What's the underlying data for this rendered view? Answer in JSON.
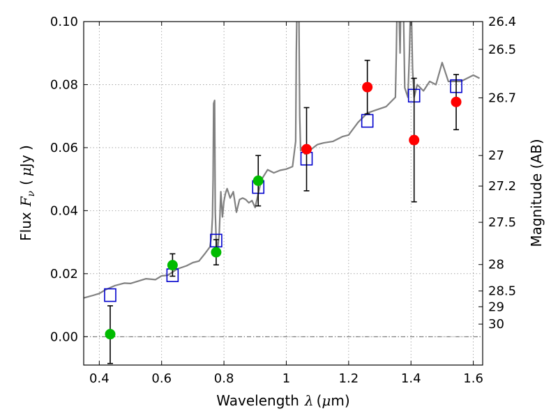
{
  "chart_data": {
    "type": "scatter",
    "title": "",
    "xlabel": {
      "prefix": "Wavelength",
      "symbol": "λ",
      "unit_open": "(",
      "unit_mu": "μ",
      "unit_rest": "m)"
    },
    "ylabel": {
      "prefix": "Flux",
      "symbol": "F",
      "subscript": "ν",
      "unit_open": "(",
      "unit_mu": "μ",
      "unit_rest": "Jy )"
    },
    "ylabel_right": "Magnitude (AB)",
    "xlim": [
      0.35,
      1.63
    ],
    "ylim": [
      -0.009,
      0.1
    ],
    "xticks": [
      {
        "v": 0.4,
        "label": "0.4"
      },
      {
        "v": 0.6,
        "label": "0.6"
      },
      {
        "v": 0.8,
        "label": "0.8"
      },
      {
        "v": 1.0,
        "label": "1"
      },
      {
        "v": 1.2,
        "label": "1.2"
      },
      {
        "v": 1.4,
        "label": "1.4"
      },
      {
        "v": 1.6,
        "label": "1.6"
      }
    ],
    "yticks": [
      {
        "v": 0.0,
        "label": "0.00"
      },
      {
        "v": 0.02,
        "label": "0.02"
      },
      {
        "v": 0.04,
        "label": "0.04"
      },
      {
        "v": 0.06,
        "label": "0.06"
      },
      {
        "v": 0.08,
        "label": "0.08"
      },
      {
        "v": 0.1,
        "label": "0.10"
      }
    ],
    "right_ticks": [
      {
        "label": "26.4",
        "flux": 0.1
      },
      {
        "label": "26.5",
        "flux": 0.0912
      },
      {
        "label": "26.7",
        "flux": 0.0758
      },
      {
        "label": "27",
        "flux": 0.0575
      },
      {
        "label": "27.2",
        "flux": 0.0478
      },
      {
        "label": "27.5",
        "flux": 0.0363
      },
      {
        "label": "28",
        "flux": 0.0229
      },
      {
        "label": "28.5",
        "flux": 0.0145
      },
      {
        "label": "29",
        "flux": 0.0095
      },
      {
        "label": "30",
        "flux": 0.004
      }
    ],
    "grid": true,
    "zero_line": true,
    "colors": {
      "spectrum": "#808080",
      "model": "#0000cc",
      "optical": "#00bb00",
      "infrared": "#ff0000",
      "errorbar": "#000000",
      "grid": "#999999"
    },
    "model_photometry": [
      {
        "x": 0.435,
        "y": 0.0132
      },
      {
        "x": 0.635,
        "y": 0.0195
      },
      {
        "x": 0.775,
        "y": 0.0305
      },
      {
        "x": 0.91,
        "y": 0.0475
      },
      {
        "x": 1.065,
        "y": 0.0565
      },
      {
        "x": 1.26,
        "y": 0.0685
      },
      {
        "x": 1.41,
        "y": 0.0765
      },
      {
        "x": 1.545,
        "y": 0.0795
      }
    ],
    "observed_optical": [
      {
        "x": 0.435,
        "y": 0.0008,
        "ylo": -0.0085,
        "yhi": 0.0098
      },
      {
        "x": 0.635,
        "y": 0.0227,
        "ylo": 0.0192,
        "yhi": 0.0263
      },
      {
        "x": 0.775,
        "y": 0.0268,
        "ylo": 0.0228,
        "yhi": 0.0308
      },
      {
        "x": 0.91,
        "y": 0.0495,
        "ylo": 0.0415,
        "yhi": 0.0575
      }
    ],
    "observed_infrared": [
      {
        "x": 1.065,
        "y": 0.0595,
        "ylo": 0.0463,
        "yhi": 0.0727
      },
      {
        "x": 1.26,
        "y": 0.0792,
        "ylo": 0.0707,
        "yhi": 0.0877
      },
      {
        "x": 1.41,
        "y": 0.0624,
        "ylo": 0.0428,
        "yhi": 0.082
      },
      {
        "x": 1.545,
        "y": 0.0745,
        "ylo": 0.0657,
        "yhi": 0.0832
      }
    ],
    "spectrum": {
      "x": [
        0.35,
        0.38,
        0.4,
        0.42,
        0.45,
        0.48,
        0.5,
        0.53,
        0.55,
        0.58,
        0.6,
        0.62,
        0.65,
        0.68,
        0.7,
        0.72,
        0.74,
        0.755,
        0.76,
        0.763,
        0.765,
        0.767,
        0.77,
        0.772,
        0.775,
        0.78,
        0.785,
        0.79,
        0.795,
        0.8,
        0.805,
        0.81,
        0.82,
        0.83,
        0.84,
        0.85,
        0.86,
        0.87,
        0.88,
        0.89,
        0.9,
        0.92,
        0.94,
        0.96,
        0.98,
        1.0,
        1.02,
        1.03,
        1.032,
        1.035,
        1.04,
        1.043,
        1.046,
        1.05,
        1.06,
        1.08,
        1.1,
        1.12,
        1.15,
        1.18,
        1.2,
        1.23,
        1.26,
        1.29,
        1.32,
        1.34,
        1.35,
        1.353,
        1.356,
        1.36,
        1.365,
        1.368,
        1.375,
        1.38,
        1.39,
        1.395,
        1.4,
        1.405,
        1.41,
        1.42,
        1.44,
        1.46,
        1.48,
        1.5,
        1.52,
        1.54,
        1.56,
        1.58,
        1.6,
        1.62
      ],
      "y": [
        0.0123,
        0.0131,
        0.0137,
        0.0149,
        0.0162,
        0.017,
        0.0169,
        0.0178,
        0.0184,
        0.0181,
        0.0193,
        0.0195,
        0.0215,
        0.0225,
        0.0235,
        0.024,
        0.0265,
        0.0285,
        0.032,
        0.038,
        0.05,
        0.074,
        0.075,
        0.04,
        0.031,
        0.028,
        0.033,
        0.046,
        0.038,
        0.043,
        0.0455,
        0.047,
        0.044,
        0.046,
        0.0395,
        0.0435,
        0.044,
        0.0435,
        0.0425,
        0.0432,
        0.041,
        0.0498,
        0.053,
        0.052,
        0.0528,
        0.0532,
        0.054,
        0.062,
        0.09,
        0.11,
        0.11,
        0.07,
        0.059,
        0.06,
        0.058,
        0.0595,
        0.061,
        0.0615,
        0.062,
        0.0635,
        0.064,
        0.068,
        0.071,
        0.072,
        0.073,
        0.075,
        0.076,
        0.09,
        0.11,
        0.11,
        0.09,
        0.11,
        0.11,
        0.079,
        0.076,
        0.09,
        0.11,
        0.085,
        0.076,
        0.08,
        0.078,
        0.081,
        0.08,
        0.087,
        0.081,
        0.081,
        0.081,
        0.082,
        0.083,
        0.082
      ]
    }
  }
}
